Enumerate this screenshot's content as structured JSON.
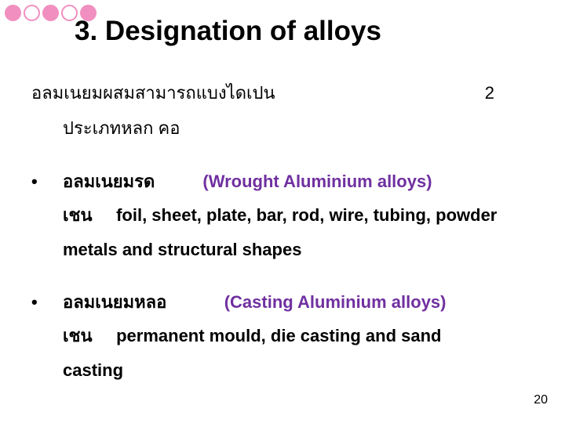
{
  "title": "3. Designation of alloys",
  "intro": {
    "line1_left": "อลมเนยมผสมสามารถแบงไดเปน",
    "line1_right": "2",
    "line2": "ประเภทหลก    คอ"
  },
  "item1": {
    "name": "อลมเนยมรด",
    "english": "(Wrought Aluminium alloys)",
    "desc_prefix": "เชน",
    "desc": "foil, sheet, plate, bar, rod, wire, tubing, powder",
    "cont": "metals and structural shapes"
  },
  "item2": {
    "name": "อลมเนยมหลอ",
    "english": "(Casting Aluminium alloys)",
    "desc_prefix": "เชน",
    "desc": "permanent mould, die casting and sand",
    "cont": "casting"
  },
  "pagenum": "20",
  "colors": {
    "accent": "#f08fc0",
    "purple": "#7030a0"
  }
}
